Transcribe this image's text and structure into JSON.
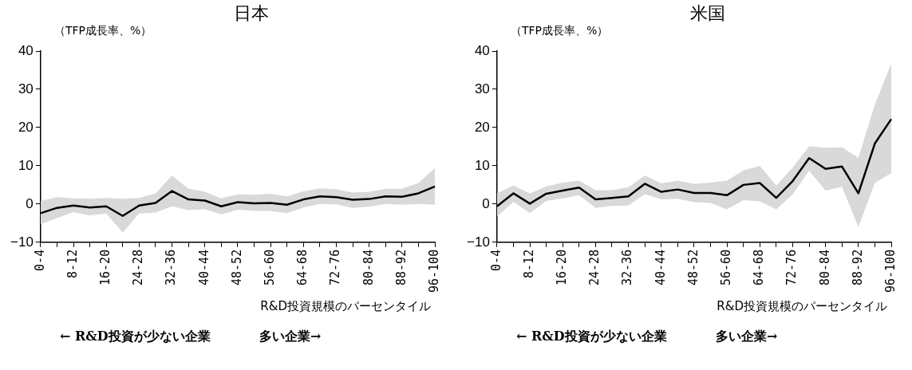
{
  "chart_data": [
    {
      "type": "line",
      "title": "日本",
      "ylabel": "（TFP成長率、%）",
      "xlabel": "R&D投資規模のパーセンタイル",
      "annotations": [
        "← R&D投資が少ない企業",
        "多い企業→"
      ],
      "categories": [
        "0-4",
        null,
        "8-12",
        null,
        "16-20",
        null,
        "24-28",
        null,
        "32-36",
        null,
        "40-44",
        null,
        "48-52",
        null,
        "56-60",
        null,
        "64-68",
        null,
        "72-76",
        null,
        "80-84",
        null,
        "88-92",
        null,
        "96-100"
      ],
      "series": [
        {
          "color": "#000000",
          "values": [
            -2.4,
            -1.0,
            -0.4,
            -0.9,
            -0.6,
            -3.1,
            -0.4,
            0.3,
            3.4,
            1.2,
            0.9,
            -0.6,
            0.5,
            0.2,
            0.3,
            -0.2,
            1.2,
            2.0,
            1.8,
            1.1,
            1.3,
            2.0,
            1.9,
            2.8,
            4.6
          ],
          "lower": [
            -5.3,
            -3.7,
            -2.1,
            -3.0,
            -2.5,
            -7.5,
            -2.5,
            -2.2,
            -0.6,
            -1.6,
            -1.4,
            -2.7,
            -1.5,
            -1.8,
            -1.8,
            -2.4,
            -0.9,
            0,
            -0.1,
            -1.0,
            -0.7,
            0,
            -0.2,
            0,
            -0.2
          ],
          "upper": [
            0.8,
            1.8,
            1.5,
            1.4,
            1.6,
            1.4,
            1.6,
            2.8,
            7.5,
            4.0,
            3.2,
            1.5,
            2.5,
            2.4,
            2.7,
            2.0,
            3.3,
            4.1,
            3.9,
            3.0,
            3.2,
            4.0,
            4.0,
            5.5,
            9.4
          ]
        }
      ],
      "ylim": [
        -10,
        40
      ],
      "yticks": [
        -10,
        0,
        10,
        20,
        30,
        40
      ],
      "grid": false,
      "legend": false,
      "marker": "none",
      "line_style": "solid"
    },
    {
      "type": "line",
      "title": "米国",
      "ylabel": "（TFP成長率、%）",
      "xlabel": "R&D投資規模のパーセンタイル",
      "annotations": [
        "← R&D投資が少ない企業",
        "多い企業→"
      ],
      "categories": [
        "0-4",
        null,
        "8-12",
        null,
        "16-20",
        null,
        "24-28",
        null,
        "32-36",
        null,
        "40-44",
        null,
        "48-52",
        null,
        "56-60",
        null,
        "64-68",
        null,
        "72-76",
        null,
        "80-84",
        null,
        "88-92",
        null,
        "96-100"
      ],
      "series": [
        {
          "color": "#000000",
          "values": [
            -0.6,
            2.8,
            0.1,
            2.7,
            3.5,
            4.3,
            1.2,
            1.6,
            2.0,
            5.3,
            3.2,
            3.8,
            2.9,
            2.9,
            2.3,
            5.0,
            5.5,
            1.6,
            6.0,
            12.0,
            9.2,
            9.8,
            2.8,
            15.8,
            22.2
          ],
          "lower": [
            -3.3,
            0.6,
            -2.4,
            0.8,
            1.5,
            2.3,
            -1.0,
            -0.5,
            -0.4,
            2.6,
            1.2,
            1.4,
            0.5,
            0.3,
            -1.4,
            1.0,
            0.7,
            -1.4,
            2.5,
            8.7,
            3.5,
            4.5,
            -6.0,
            5.5,
            8.1
          ],
          "upper": [
            2.8,
            4.8,
            2.8,
            4.6,
            5.6,
            6.1,
            3.6,
            3.6,
            4.4,
            7.5,
            5.4,
            6.1,
            5.3,
            5.6,
            6.1,
            8.8,
            10.0,
            4.8,
            9.5,
            15.1,
            14.7,
            14.8,
            12.1,
            26,
            36.7
          ]
        }
      ],
      "ylim": [
        -10,
        40
      ],
      "yticks": [
        -10,
        0,
        10,
        20,
        30,
        40
      ],
      "grid": false,
      "legend": false,
      "marker": "none",
      "line_style": "solid"
    }
  ]
}
